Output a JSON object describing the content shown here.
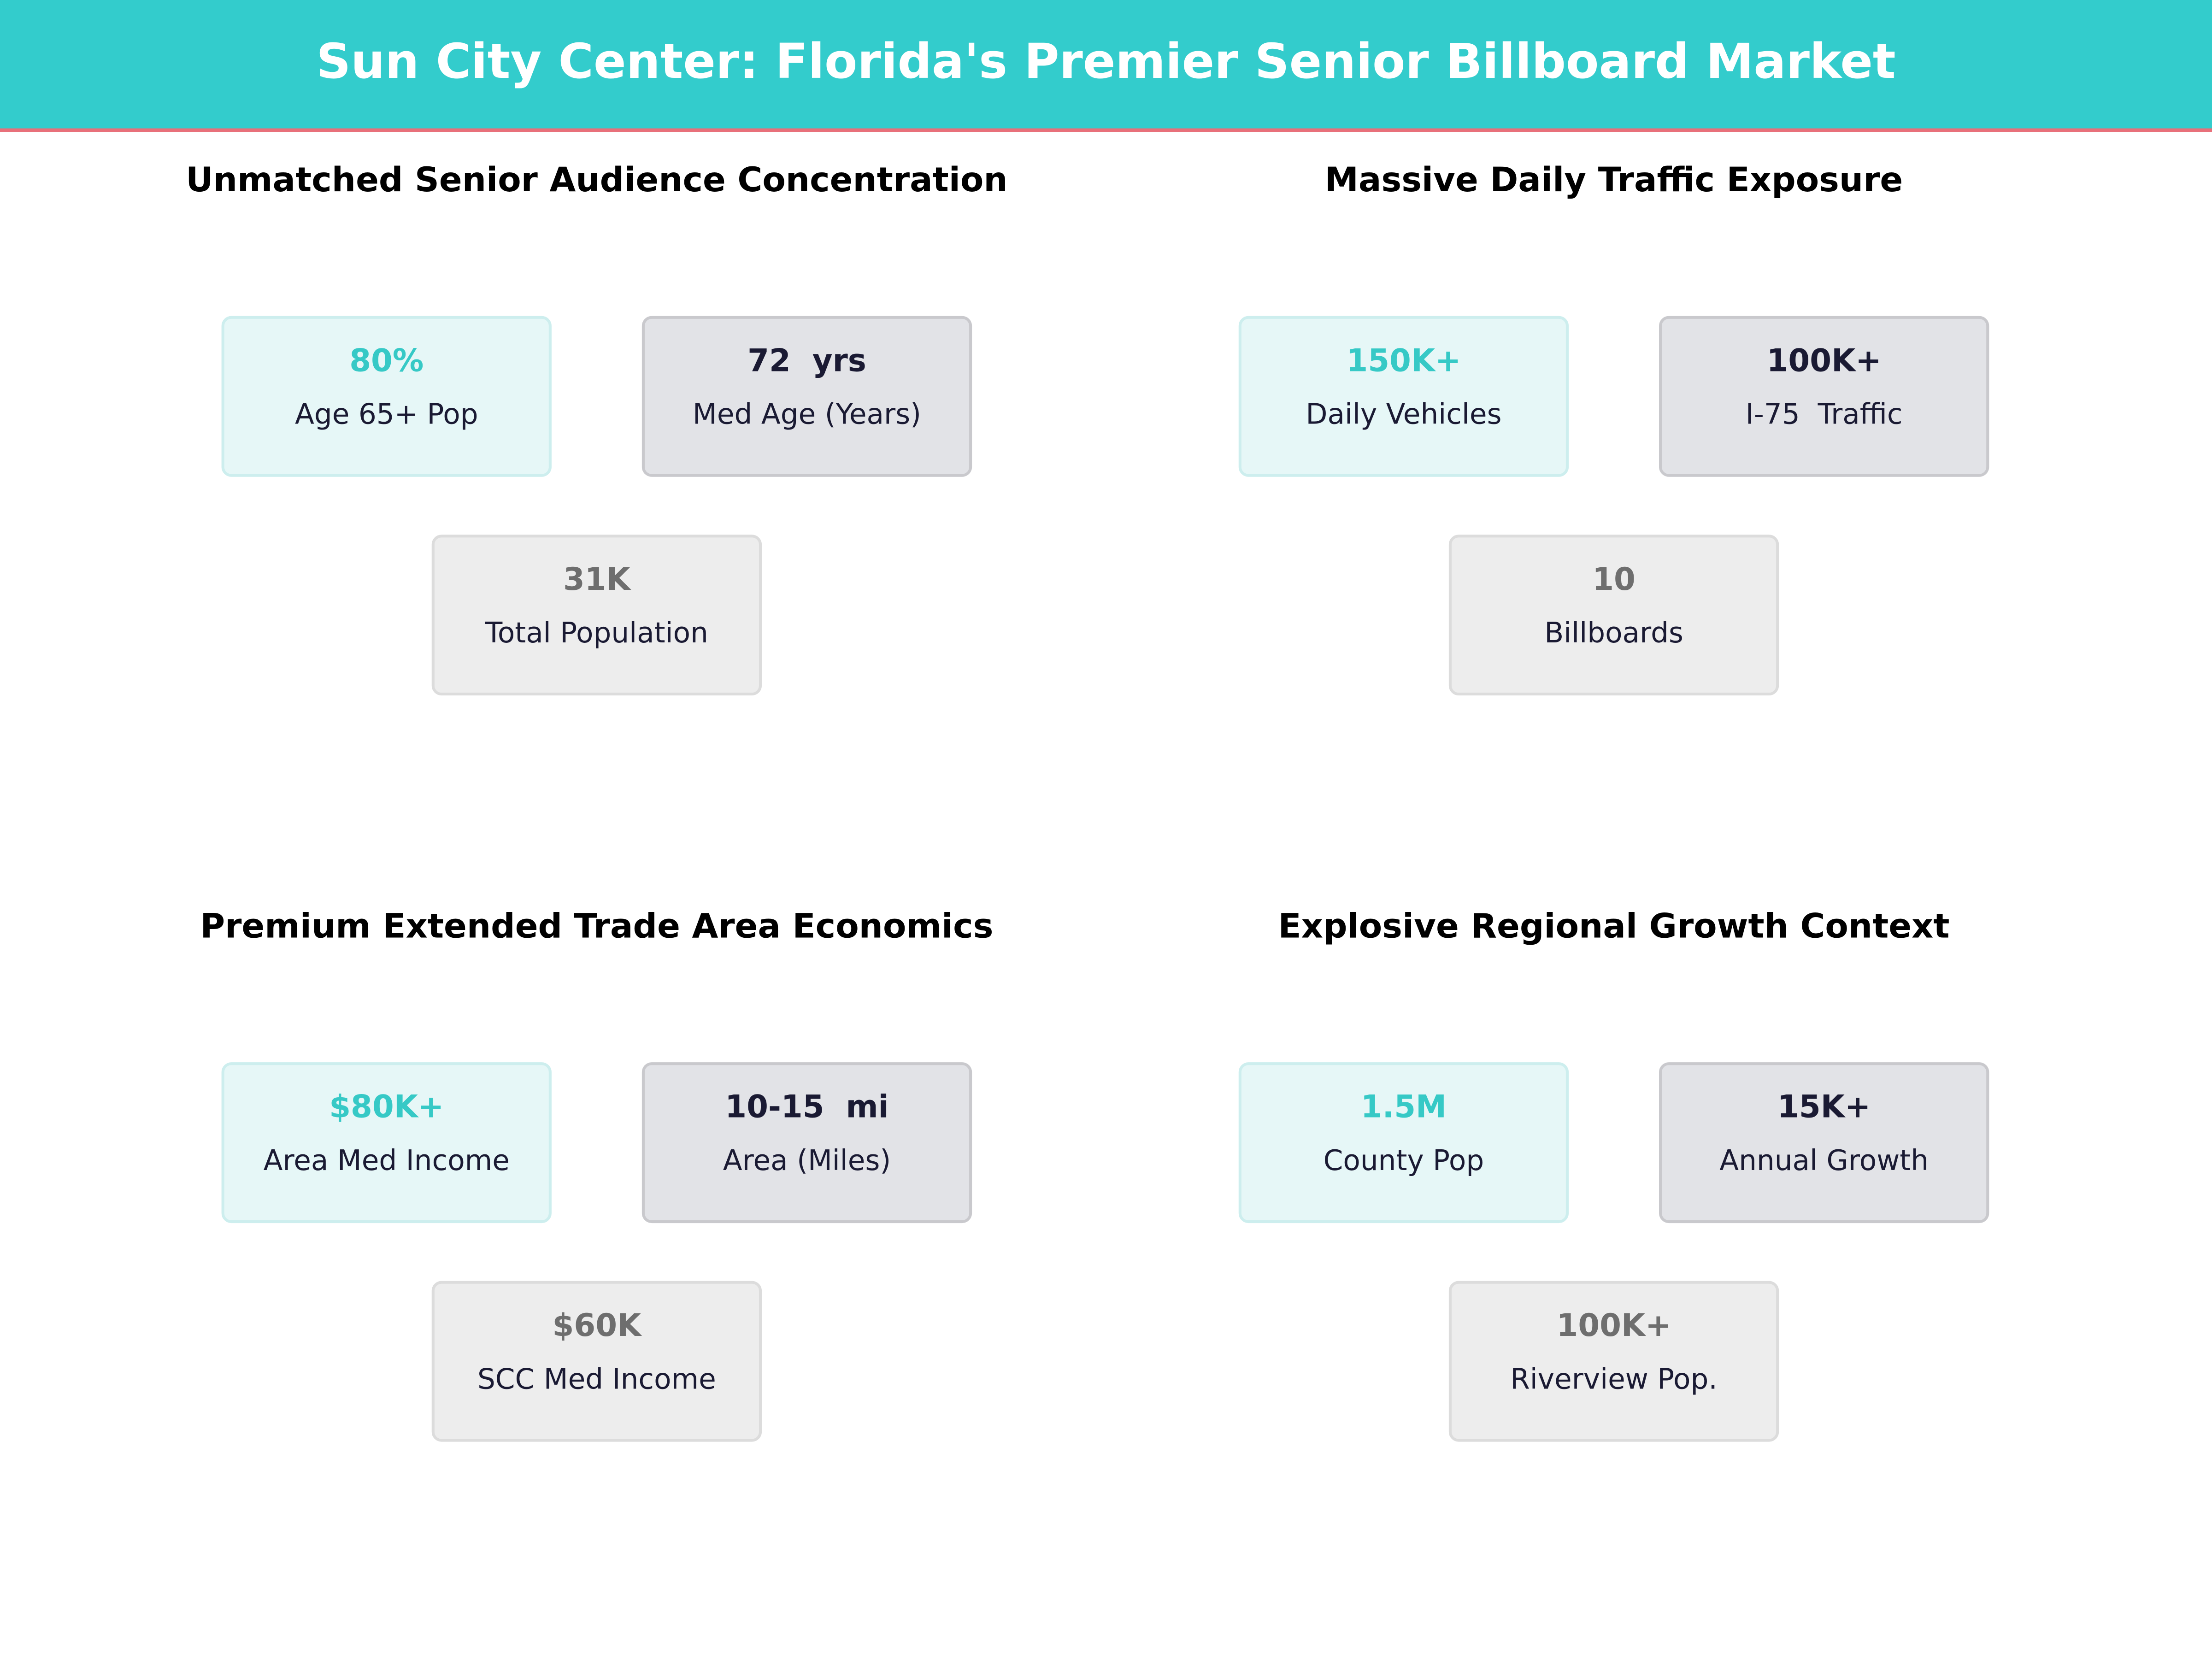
{
  "header": {
    "title": "Sun City Center: Florida's Premier Senior Billboard Market"
  },
  "panels": [
    {
      "title": "Unmatched Senior Audience Concentration",
      "cards": [
        {
          "value": "80%",
          "label": "Age 65+ Pop"
        },
        {
          "value": "72  yrs",
          "label": "Med Age (Years)"
        },
        {
          "value": "31K",
          "label": "Total Population"
        }
      ]
    },
    {
      "title": "Massive Daily Traffic Exposure",
      "cards": [
        {
          "value": "150K+",
          "label": "Daily Vehicles"
        },
        {
          "value": "100K+",
          "label": "I-75  Traffic"
        },
        {
          "value": "10",
          "label": "Billboards"
        }
      ]
    },
    {
      "title": "Premium Extended Trade Area Economics",
      "cards": [
        {
          "value": "$80K+",
          "label": "Area Med Income"
        },
        {
          "value": "10-15  mi",
          "label": "Area (Miles)"
        },
        {
          "value": "$60K",
          "label": "SCC Med Income"
        }
      ]
    },
    {
      "title": "Explosive Regional Growth Context",
      "cards": [
        {
          "value": "1.5M",
          "label": "County Pop"
        },
        {
          "value": "15K+",
          "label": "Annual Growth"
        },
        {
          "value": "100K+",
          "label": "Riverview Pop."
        }
      ]
    }
  ]
}
